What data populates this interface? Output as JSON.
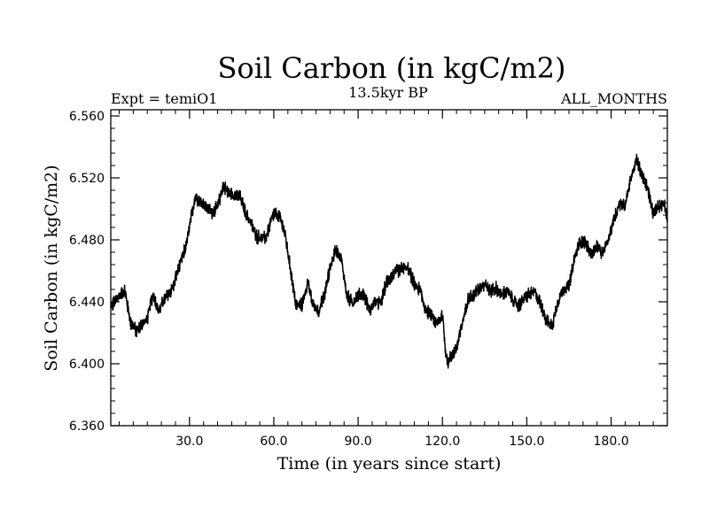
{
  "chart_data": {
    "type": "line",
    "title": "Soil Carbon (in kgC/m2)",
    "subtitle_left": "Expt = temiO1",
    "subtitle_center": "13.5kyr BP",
    "subtitle_right": "ALL_MONTHS",
    "xlabel": "Time (in years since start)",
    "ylabel": "Soil Carbon (in kgC/m2)",
    "xlim": [
      2,
      200
    ],
    "ylim": [
      6.36,
      6.564
    ],
    "x_ticks": [
      30,
      60,
      90,
      120,
      150,
      180
    ],
    "x_tick_labels": [
      "30.0",
      "60.0",
      "90.0",
      "120.0",
      "150.0",
      "180.0"
    ],
    "y_ticks": [
      6.36,
      6.4,
      6.44,
      6.48,
      6.52,
      6.56
    ],
    "y_tick_labels": [
      "6.360",
      "6.400",
      "6.440",
      "6.480",
      "6.520",
      "6.560"
    ],
    "noise_amplitude": 0.006,
    "series": [
      {
        "name": "Soil Carbon",
        "color": "#000000",
        "x": [
          2,
          4,
          7,
          9,
          11,
          13,
          15,
          17,
          19,
          21,
          24,
          27,
          29,
          32,
          35,
          38,
          40,
          42,
          44,
          46,
          48,
          50,
          52,
          54,
          57,
          60,
          62,
          64,
          66,
          68,
          70,
          72,
          74,
          76,
          78,
          80,
          82,
          84,
          86,
          88,
          90,
          92,
          94,
          96,
          98,
          100,
          102,
          104,
          106,
          108,
          110,
          112,
          114,
          116,
          118,
          120,
          121,
          122,
          123,
          125,
          127,
          129,
          131,
          133,
          135,
          137,
          139,
          141,
          143,
          145,
          147,
          149,
          151,
          153,
          155,
          157,
          159,
          161,
          163,
          165,
          167,
          169,
          171,
          173,
          175,
          177,
          179,
          181,
          183,
          185,
          187,
          189,
          191,
          193,
          195,
          197,
          199,
          200
        ],
        "values": [
          6.436,
          6.442,
          6.447,
          6.427,
          6.421,
          6.425,
          6.429,
          6.445,
          6.434,
          6.441,
          6.449,
          6.466,
          6.478,
          6.508,
          6.503,
          6.498,
          6.501,
          6.515,
          6.51,
          6.509,
          6.508,
          6.497,
          6.49,
          6.482,
          6.481,
          6.497,
          6.495,
          6.484,
          6.46,
          6.437,
          6.438,
          6.452,
          6.438,
          6.434,
          6.444,
          6.462,
          6.474,
          6.468,
          6.444,
          6.439,
          6.444,
          6.445,
          6.434,
          6.44,
          6.439,
          6.452,
          6.457,
          6.46,
          6.462,
          6.461,
          6.451,
          6.448,
          6.434,
          6.432,
          6.425,
          6.432,
          6.41,
          6.4,
          6.405,
          6.41,
          6.425,
          6.442,
          6.444,
          6.449,
          6.452,
          6.447,
          6.449,
          6.444,
          6.447,
          6.441,
          6.437,
          6.442,
          6.445,
          6.446,
          6.438,
          6.428,
          6.424,
          6.44,
          6.448,
          6.45,
          6.468,
          6.479,
          6.478,
          6.47,
          6.476,
          6.471,
          6.48,
          6.494,
          6.503,
          6.503,
          6.52,
          6.532,
          6.521,
          6.513,
          6.497,
          6.502,
          6.504,
          6.495
        ]
      }
    ]
  }
}
